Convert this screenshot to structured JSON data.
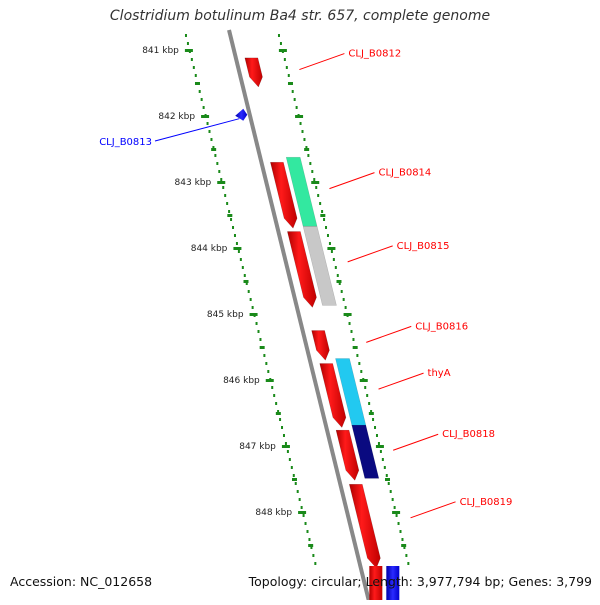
{
  "header": {
    "title_italic": "Clostridium botulinum",
    "title_rest": " Ba4 str. 657, complete genome"
  },
  "footer": {
    "accession": "Accession: NC_012658",
    "summary": "Topology: circular; Length: 3,977,794 bp; Genes: 3,799"
  },
  "colors": {
    "forward_gene": "#ff0000",
    "reverse_gene": "#0000ff",
    "backbone": "#888888",
    "ticks": "#1a8a1a",
    "thya_cds": "#22c9f0",
    "b0814_cds": "#33e8a0",
    "b0815_cds": "#c8c8c8",
    "b0818_cds": "#0a0a80"
  },
  "ruler": {
    "ticks": [
      {
        "label": "841 kbp",
        "kbp": 841
      },
      {
        "label": "842 kbp",
        "kbp": 842
      },
      {
        "label": "843 kbp",
        "kbp": 843
      },
      {
        "label": "844 kbp",
        "kbp": 844
      },
      {
        "label": "845 kbp",
        "kbp": 845
      },
      {
        "label": "846 kbp",
        "kbp": 846
      },
      {
        "label": "847 kbp",
        "kbp": 847
      },
      {
        "label": "848 kbp",
        "kbp": 848
      }
    ]
  },
  "genes": [
    {
      "label": "CLJ_B0812",
      "strand": "forward",
      "start_kbp": 841.12,
      "end_kbp": 841.56
    },
    {
      "label": "CLJ_B0813",
      "strand": "reverse",
      "start_kbp": 841.95,
      "end_kbp": 842.05
    },
    {
      "label": "CLJ_B0814",
      "strand": "forward",
      "start_kbp": 842.7,
      "end_kbp": 843.7
    },
    {
      "label": "CLJ_B0815",
      "strand": "forward",
      "start_kbp": 843.75,
      "end_kbp": 844.9
    },
    {
      "label": "CLJ_B0816",
      "strand": "forward",
      "start_kbp": 845.25,
      "end_kbp": 845.7
    },
    {
      "label": "thyA",
      "strand": "forward",
      "start_kbp": 845.75,
      "end_kbp": 846.72
    },
    {
      "label": "CLJ_B0818",
      "strand": "forward",
      "start_kbp": 846.76,
      "end_kbp": 847.52
    },
    {
      "label": "CLJ_B0819",
      "strand": "forward",
      "start_kbp": 847.58,
      "end_kbp": 848.85
    }
  ]
}
